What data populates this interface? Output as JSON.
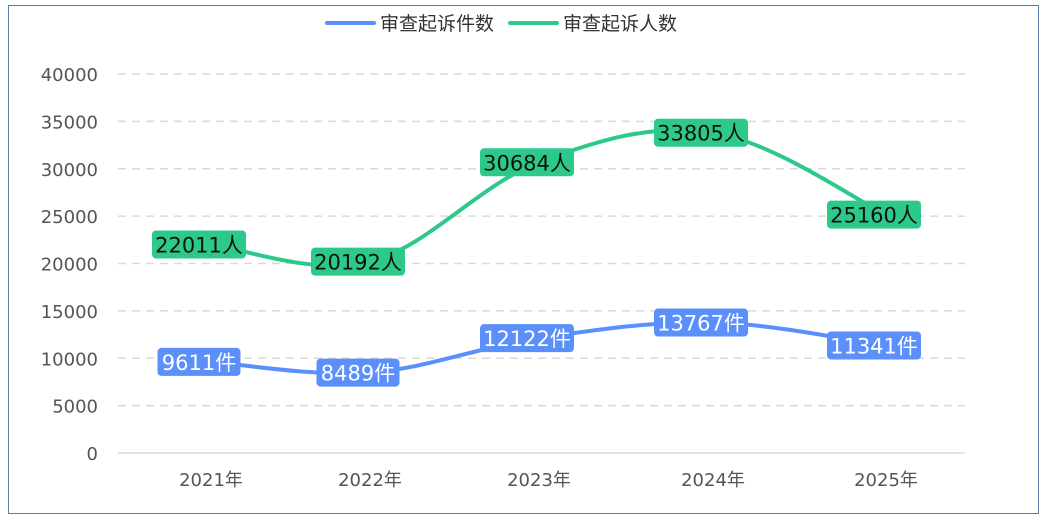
{
  "chart_data": {
    "type": "line",
    "categories": [
      "2021年",
      "2022年",
      "2023年",
      "2024年",
      "2025年"
    ],
    "ylim": [
      0,
      40000
    ],
    "yticks": [
      "0",
      "5000",
      "10000",
      "15000",
      "20000",
      "25000",
      "30000",
      "35000",
      "40000"
    ],
    "grid": true,
    "legend_position": "top-center",
    "series": [
      {
        "name": "审查起诉件数",
        "values": [
          9611,
          8489,
          12122,
          13767,
          11341
        ],
        "labels": [
          "9611件",
          "8489件",
          "12122件",
          "13767件",
          "11341件"
        ],
        "color": "#5b8ff9",
        "label_text_color": "#ffffff"
      },
      {
        "name": "审查起诉人数",
        "values": [
          22011,
          20192,
          30684,
          33805,
          25160
        ],
        "labels": [
          "22011人",
          "20192人",
          "30684人",
          "33805人",
          "25160人"
        ],
        "color": "#2cc98a",
        "label_text_color": "#111111"
      }
    ]
  }
}
